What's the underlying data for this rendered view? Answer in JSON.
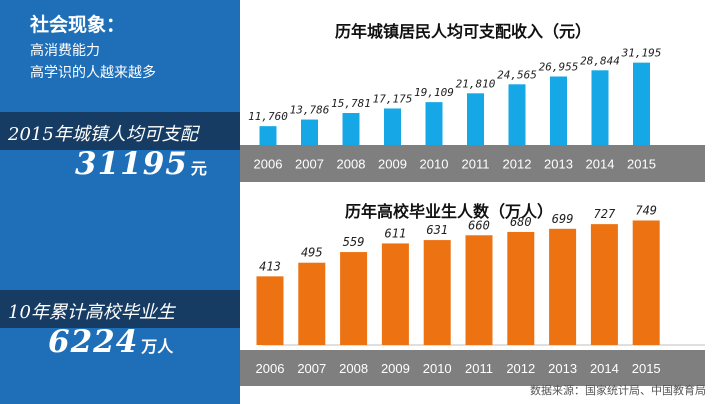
{
  "sidebar": {
    "title": "社会现象：",
    "lines": [
      "高消费能力",
      "高学识的人越来越多"
    ],
    "stat1": {
      "label": "2015年城镇人均可支配",
      "value": "31195",
      "unit": "元"
    },
    "stat2": {
      "label": "10年累计高校毕业生",
      "value": "6224",
      "unit": "万人"
    }
  },
  "source": "数据来源：国家统计局、中国教育局",
  "colors": {
    "sidebar": "#1f6fb8",
    "band": "#173c64",
    "income_bar": "#15a7e6",
    "grad_bar": "#ec7212",
    "axis_band": "#7f7f7f"
  },
  "chart_data": [
    {
      "type": "bar",
      "title": "历年城镇居民人均可支配收入（元）",
      "categories": [
        "2006",
        "2007",
        "2008",
        "2009",
        "2010",
        "2011",
        "2012",
        "2013",
        "2014",
        "2015"
      ],
      "values": [
        11760,
        13786,
        15781,
        17175,
        19109,
        21810,
        24565,
        26955,
        28844,
        31195
      ],
      "labels": [
        "11,760",
        "13,786",
        "15,781",
        "17,175",
        "19,109",
        "21,810",
        "24,565",
        "26,955",
        "28,844",
        "31,195"
      ]
    },
    {
      "type": "bar",
      "title": "历年高校毕业生人数（万人）",
      "categories": [
        "2006",
        "2007",
        "2008",
        "2009",
        "2010",
        "2011",
        "2012",
        "2013",
        "2014",
        "2015"
      ],
      "values": [
        413,
        495,
        559,
        611,
        631,
        660,
        680,
        699,
        727,
        749
      ],
      "labels": [
        "413",
        "495",
        "559",
        "611",
        "631",
        "660",
        "680",
        "699",
        "727",
        "749"
      ]
    }
  ]
}
